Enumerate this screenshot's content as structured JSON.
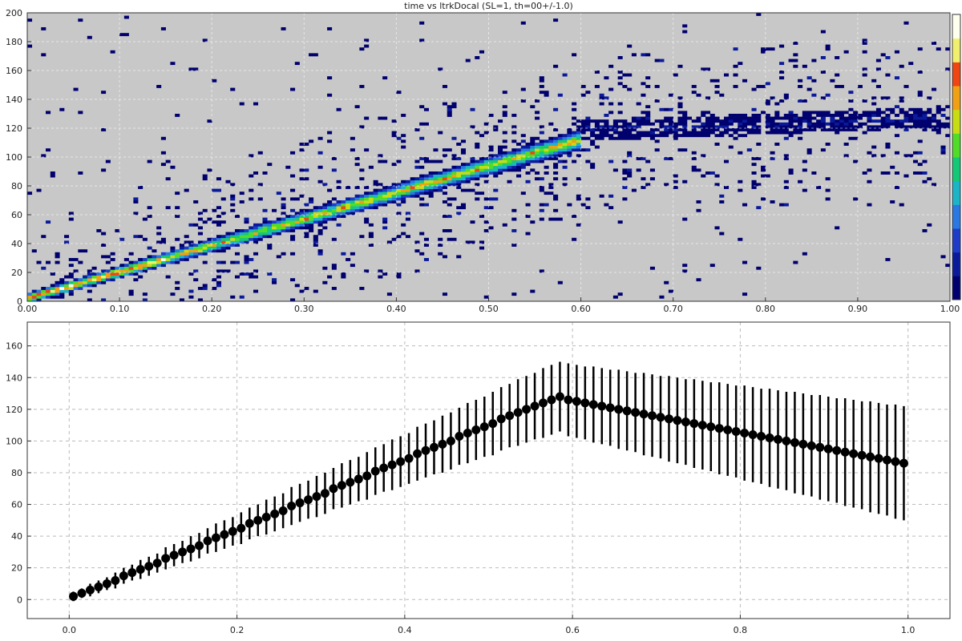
{
  "chart_data": [
    {
      "type": "heatmap",
      "title": "time vs ltrkDocal (SL=1, th=00+/-1.0)",
      "xlabel": "",
      "ylabel": "",
      "xlim": [
        0,
        1
      ],
      "ylim": [
        0,
        200
      ],
      "x_ticks": [
        "0.00",
        "0.10",
        "0.20",
        "0.30",
        "0.40",
        "0.50",
        "0.60",
        "0.70",
        "0.80",
        "0.90",
        "1.00"
      ],
      "y_ticks": [
        "0",
        "20",
        "40",
        "60",
        "80",
        "100",
        "120",
        "140",
        "160",
        "180",
        "200"
      ],
      "grid": true,
      "background": "#c8c8c8",
      "colormap": [
        "#00006e",
        "#0a1a9a",
        "#1e3cc8",
        "#2a78e0",
        "#1eb4c8",
        "#14c878",
        "#50dc28",
        "#c8dc14",
        "#f0a014",
        "#f04614",
        "#f0f06e",
        "#fffff0"
      ],
      "band": {
        "x": [
          0.0,
          0.6
        ],
        "y": [
          2,
          112
        ],
        "spread": 4
      },
      "plateau": {
        "x": [
          0.6,
          1.0
        ],
        "y": [
          118,
          128
        ]
      }
    },
    {
      "type": "scatter",
      "title": "",
      "xlabel": "",
      "ylabel": "",
      "xlim": [
        -0.05,
        1.05
      ],
      "ylim": [
        -12,
        175
      ],
      "x_ticks": [
        "0.0",
        "0.2",
        "0.4",
        "0.6",
        "0.8",
        "1.0"
      ],
      "y_ticks": [
        "0",
        "20",
        "40",
        "60",
        "80",
        "100",
        "120",
        "140",
        "160"
      ],
      "grid": true,
      "marker_color": "#000000",
      "series": [
        {
          "x": [
            0.005,
            0.015,
            0.025,
            0.035,
            0.045,
            0.055,
            0.065,
            0.075,
            0.085,
            0.095,
            0.105,
            0.115,
            0.125,
            0.135,
            0.145,
            0.155,
            0.165,
            0.175,
            0.185,
            0.195,
            0.205,
            0.215,
            0.225,
            0.235,
            0.245,
            0.255,
            0.265,
            0.275,
            0.285,
            0.295,
            0.305,
            0.315,
            0.325,
            0.335,
            0.345,
            0.355,
            0.365,
            0.375,
            0.385,
            0.395,
            0.405,
            0.415,
            0.425,
            0.435,
            0.445,
            0.455,
            0.465,
            0.475,
            0.485,
            0.495,
            0.505,
            0.515,
            0.525,
            0.535,
            0.545,
            0.555,
            0.565,
            0.575,
            0.585,
            0.595,
            0.605,
            0.615,
            0.625,
            0.635,
            0.645,
            0.655,
            0.665,
            0.675,
            0.685,
            0.695,
            0.705,
            0.715,
            0.725,
            0.735,
            0.745,
            0.755,
            0.765,
            0.775,
            0.785,
            0.795,
            0.805,
            0.815,
            0.825,
            0.835,
            0.845,
            0.855,
            0.865,
            0.875,
            0.885,
            0.895,
            0.905,
            0.915,
            0.925,
            0.935,
            0.945,
            0.955,
            0.965,
            0.975,
            0.985,
            0.995
          ],
          "y": [
            2,
            4,
            6,
            8,
            10,
            12,
            15,
            17,
            19,
            21,
            23,
            26,
            28,
            30,
            32,
            34,
            37,
            39,
            41,
            43,
            45,
            48,
            50,
            52,
            54,
            56,
            59,
            61,
            63,
            65,
            67,
            70,
            72,
            74,
            76,
            78,
            81,
            83,
            85,
            87,
            89,
            92,
            94,
            96,
            98,
            100,
            103,
            105,
            107,
            109,
            111,
            114,
            116,
            118,
            120,
            122,
            124,
            126,
            128,
            126,
            125,
            124,
            123,
            122,
            121,
            120,
            119,
            118,
            117,
            116,
            115,
            114,
            113,
            112,
            111,
            110,
            109,
            108,
            107,
            106,
            105,
            104,
            103,
            102,
            101,
            100,
            99,
            98,
            97,
            96,
            95,
            94,
            93,
            92,
            91,
            90,
            89,
            88,
            87,
            86
          ],
          "err": [
            3,
            3,
            4,
            4,
            4,
            5,
            5,
            5,
            6,
            6,
            6,
            7,
            7,
            7,
            8,
            8,
            8,
            9,
            9,
            9,
            10,
            10,
            10,
            11,
            11,
            11,
            12,
            12,
            12,
            13,
            13,
            13,
            14,
            14,
            14,
            15,
            15,
            15,
            16,
            16,
            16,
            17,
            17,
            17,
            18,
            18,
            18,
            19,
            19,
            19,
            20,
            20,
            20,
            21,
            21,
            21,
            22,
            22,
            22,
            23,
            23,
            23,
            24,
            24,
            24,
            25,
            25,
            25,
            26,
            26,
            26,
            27,
            27,
            27,
            28,
            28,
            28,
            29,
            29,
            29,
            30,
            30,
            30,
            31,
            31,
            31,
            32,
            32,
            32,
            33,
            33,
            33,
            34,
            34,
            34,
            35,
            35,
            35,
            36,
            36
          ]
        }
      ]
    }
  ]
}
